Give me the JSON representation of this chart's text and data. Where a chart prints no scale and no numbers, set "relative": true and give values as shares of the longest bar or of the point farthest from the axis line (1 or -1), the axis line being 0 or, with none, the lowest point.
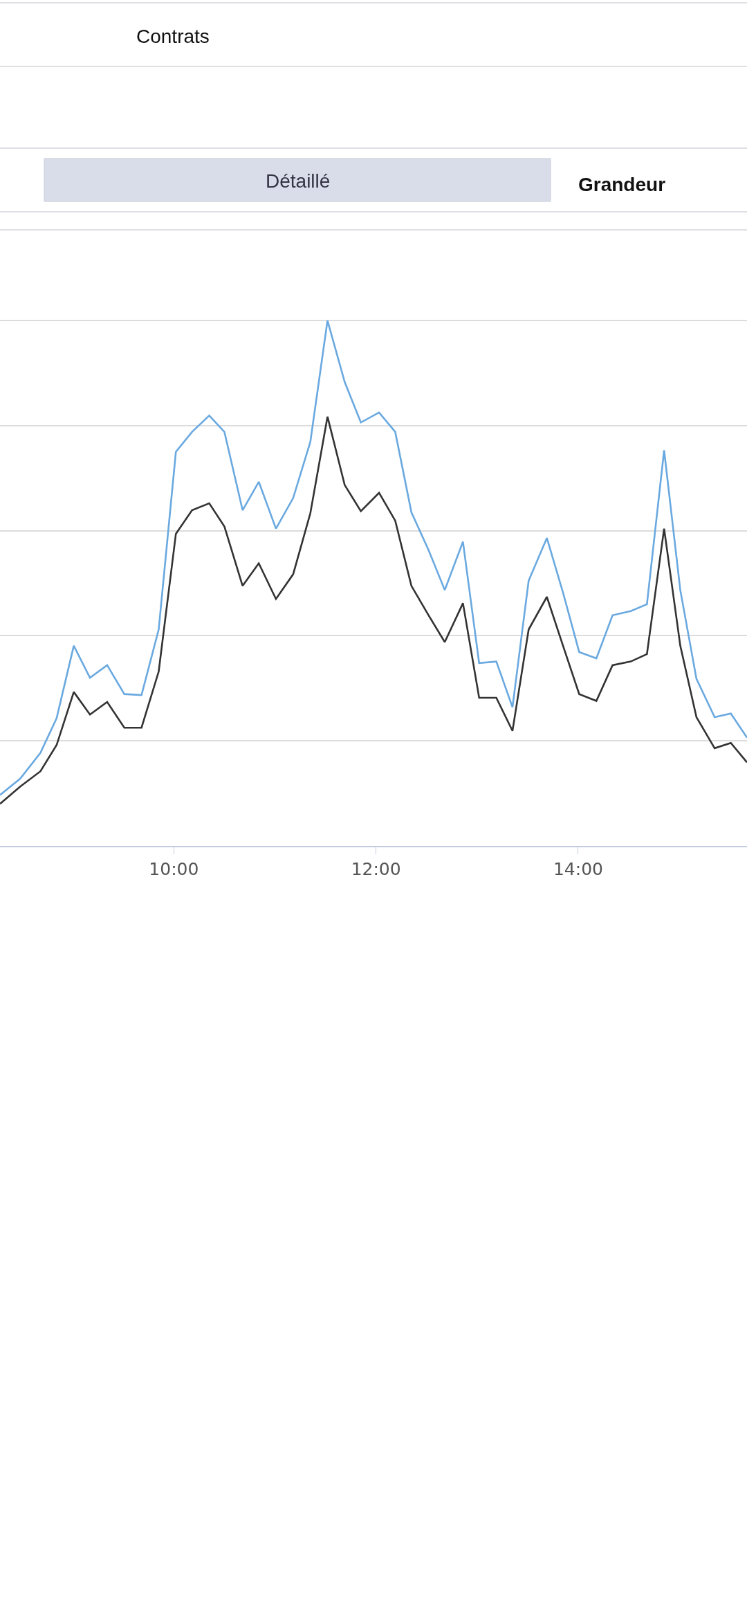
{
  "chart_data": {
    "type": "line",
    "relative": true,
    "annotations": [
      "Contrats",
      "Détaillé",
      "Grandeur"
    ],
    "x": [
      8.28,
      8.48,
      8.68,
      8.84,
      9.01,
      9.17,
      9.34,
      9.51,
      9.68,
      9.85,
      10.02,
      10.18,
      10.35,
      10.5,
      10.68,
      10.84,
      11.01,
      11.18,
      11.35,
      11.52,
      11.69,
      11.85,
      12.03,
      12.19,
      12.35,
      12.52,
      12.68,
      12.86,
      13.02,
      13.19,
      13.35,
      13.51,
      13.69,
      13.85,
      14.01,
      14.18,
      14.34,
      14.52,
      14.68,
      14.85,
      15.01,
      15.17,
      15.35,
      15.51,
      15.67
    ],
    "xlim": [
      8.28,
      15.67
    ],
    "xticks": [
      {
        "value": 10,
        "label": "10:00"
      },
      {
        "value": 12,
        "label": "12:00"
      },
      {
        "value": 14,
        "label": "14:00"
      }
    ],
    "series": [
      {
        "color": "#6aa9e0",
        "values": [
          0.097,
          0.128,
          0.177,
          0.243,
          0.381,
          0.32,
          0.344,
          0.289,
          0.287,
          0.412,
          0.75,
          0.788,
          0.819,
          0.788,
          0.639,
          0.693,
          0.604,
          0.662,
          0.769,
          1.0,
          0.883,
          0.806,
          0.825,
          0.788,
          0.635,
          0.563,
          0.487,
          0.579,
          0.348,
          0.351,
          0.264,
          0.505,
          0.586,
          0.482,
          0.369,
          0.357,
          0.439,
          0.447,
          0.46,
          0.753,
          0.487,
          0.318,
          0.245,
          0.252,
          0.206
        ]
      },
      {
        "color": "#333333",
        "values": [
          0.08,
          0.113,
          0.142,
          0.192,
          0.293,
          0.25,
          0.274,
          0.225,
          0.225,
          0.332,
          0.594,
          0.639,
          0.652,
          0.608,
          0.495,
          0.538,
          0.47,
          0.517,
          0.633,
          0.817,
          0.687,
          0.637,
          0.672,
          0.619,
          0.495,
          0.439,
          0.388,
          0.462,
          0.282,
          0.282,
          0.219,
          0.412,
          0.474,
          0.381,
          0.289,
          0.276,
          0.344,
          0.351,
          0.365,
          0.604,
          0.381,
          0.245,
          0.186,
          0.196,
          0.159
        ]
      }
    ],
    "grid": "y",
    "marker": "none",
    "line_style": "solid"
  }
}
